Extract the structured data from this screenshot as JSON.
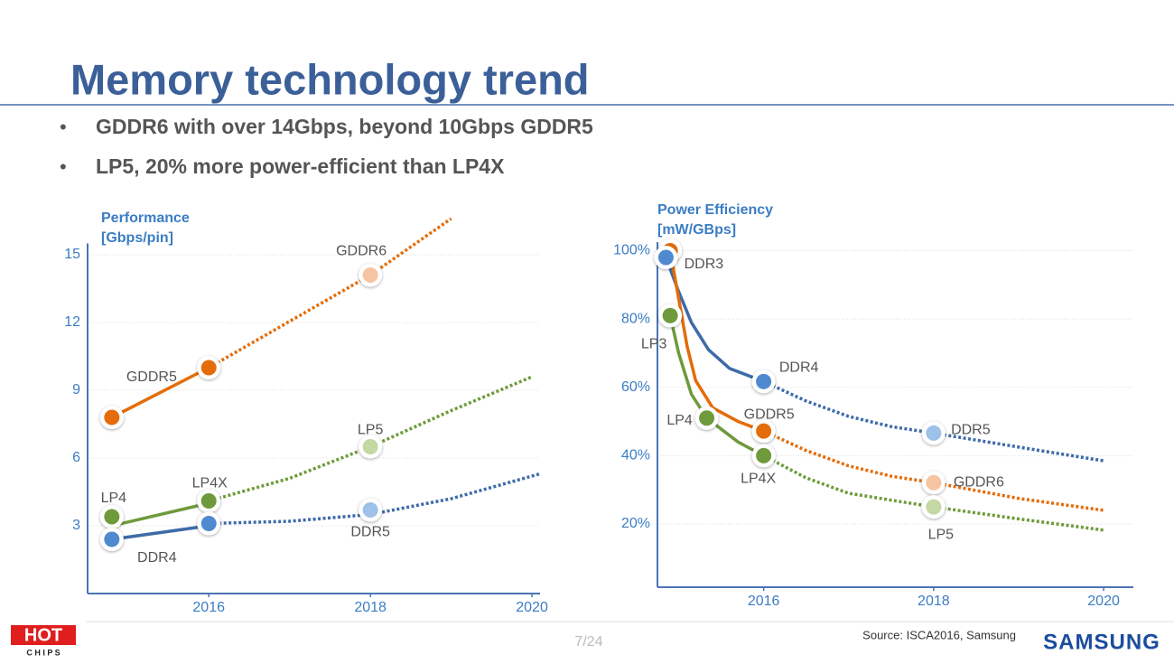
{
  "title": "Memory technology trend",
  "bullets": [
    "GDDR6 with over 14Gbps, beyond 10Gbps GDDR5",
    "LP5, 20% more power-efficient than LP4X"
  ],
  "chart_data": [
    {
      "type": "line",
      "ylabel": [
        "Performance",
        "[Gbps/pin]"
      ],
      "xlim": [
        2014.5,
        2020.1
      ],
      "xticks": [
        2016,
        2018,
        2020
      ],
      "ylim": [
        0,
        15.5
      ],
      "yticks": [
        3,
        6,
        9,
        12,
        15
      ],
      "grid": true,
      "series": [
        {
          "color": "#e46c0a",
          "style": "solid",
          "x": [
            2014.8,
            2016
          ],
          "values": [
            7.8,
            10
          ]
        },
        {
          "color": "#e46c0a",
          "style": "dotted",
          "x": [
            2016,
            2018,
            2019.0
          ],
          "values": [
            10,
            14.1,
            16.6
          ]
        },
        {
          "color": "#6f9a3b",
          "style": "solid",
          "x": [
            2014.8,
            2016
          ],
          "values": [
            3.0,
            4.0
          ]
        },
        {
          "color": "#6f9a3b",
          "style": "dotted",
          "x": [
            2016,
            2017,
            2018,
            2019,
            2020
          ],
          "values": [
            4.1,
            5.1,
            6.5,
            8.1,
            9.6
          ]
        },
        {
          "color": "#3d6ba8",
          "style": "solid",
          "x": [
            2014.8,
            2016
          ],
          "values": [
            2.4,
            3.0
          ]
        },
        {
          "color": "#3d6ba8",
          "style": "dotted",
          "x": [
            2016,
            2017,
            2018,
            2019,
            2020.1
          ],
          "values": [
            3.1,
            3.2,
            3.5,
            4.2,
            5.3
          ]
        }
      ],
      "points": {
        "x": [
          2014.8,
          2016,
          2018,
          2014.8,
          2016,
          2018,
          2014.8,
          2016,
          2018
        ],
        "values": [
          7.8,
          10,
          14.1,
          3.4,
          4.1,
          6.5,
          2.4,
          3.1,
          3.7
        ],
        "colors": [
          "#e46c0a",
          "#e46c0a",
          "#f6c4a0",
          "#6f9a3b",
          "#6f9a3b",
          "#c3d8a3",
          "#4f8ad0",
          "#4f8ad0",
          "#9dc1e8"
        ],
        "labels": [
          "GDDR5",
          null,
          "GDDR6",
          "LP4",
          "LP4X",
          "LP5",
          "DDR4",
          null,
          "DDR5"
        ]
      }
    },
    {
      "type": "line",
      "ylabel": [
        "Power Efficiency",
        "[mW/GBps]"
      ],
      "xlim": [
        2014.75,
        2020.35
      ],
      "xticks": [
        2016,
        2018,
        2020
      ],
      "ylim": [
        1.5,
        102.5
      ],
      "yticks": [
        {
          "value": 20,
          "label": "20%"
        },
        {
          "value": 40,
          "label": "40%"
        },
        {
          "value": 60,
          "label": "60%"
        },
        {
          "value": 80,
          "label": "80%"
        },
        {
          "value": 100,
          "label": "100%"
        }
      ],
      "grid": true,
      "series": [
        {
          "color": "#3d6ba8",
          "style": "solid",
          "x": [
            2014.85,
            2015.0,
            2015.15,
            2015.35,
            2015.6,
            2016
          ],
          "values": [
            98,
            88,
            79,
            71,
            65.5,
            61.7
          ]
        },
        {
          "color": "#e46c0a",
          "style": "solid",
          "x": [
            2014.9,
            2015.0,
            2015.1,
            2015.2,
            2015.4,
            2015.7,
            2016
          ],
          "values": [
            100,
            86,
            72,
            62,
            54,
            50,
            47.2
          ]
        },
        {
          "color": "#6f9a3b",
          "style": "solid",
          "x": [
            2014.9,
            2015.0,
            2015.15,
            2015.33,
            2015.7,
            2016
          ],
          "values": [
            81,
            70,
            58,
            51,
            44,
            40
          ]
        },
        {
          "color": "#3d6ba8",
          "style": "dotted",
          "x": [
            2016,
            2016.5,
            2017,
            2017.5,
            2018,
            2019,
            2020
          ],
          "values": [
            61.7,
            56,
            51.5,
            48.5,
            46.6,
            42.5,
            38.5
          ]
        },
        {
          "color": "#e46c0a",
          "style": "dotted",
          "x": [
            2016,
            2016.5,
            2017,
            2017.5,
            2018,
            2019,
            2020
          ],
          "values": [
            47.2,
            41.5,
            37,
            34,
            32.1,
            27.5,
            24
          ]
        },
        {
          "color": "#6f9a3b",
          "style": "dotted",
          "x": [
            2016,
            2016.5,
            2017,
            2017.5,
            2018,
            2019,
            2020
          ],
          "values": [
            40,
            33.5,
            29,
            27,
            25,
            21.5,
            18.2
          ]
        }
      ],
      "points": {
        "x": [
          2014.9,
          2014.85,
          2014.9,
          2015.33,
          2016,
          2016,
          2016,
          2018,
          2018,
          2018
        ],
        "values": [
          100,
          98,
          81,
          51,
          61.7,
          47.2,
          40,
          46.6,
          32.1,
          25
        ],
        "colors": [
          "#e46c0a",
          "#4f8ad0",
          "#6f9a3b",
          "#6f9a3b",
          "#4f8ad0",
          "#e46c0a",
          "#6f9a3b",
          "#9dc1e8",
          "#f6c4a0",
          "#c3d8a3"
        ],
        "labels": [
          null,
          "DDR3",
          "LP3",
          "LP4",
          "DDR4",
          "GDDR5",
          "LP4X",
          "DDR5",
          "GDDR6",
          "LP5"
        ]
      }
    }
  ],
  "footer": {
    "logo_top": "HOT",
    "logo_bottom": "C H I P S",
    "page": "7/24",
    "source": "Source: ISCA2016, Samsung",
    "brand": "SAMSUNG"
  }
}
